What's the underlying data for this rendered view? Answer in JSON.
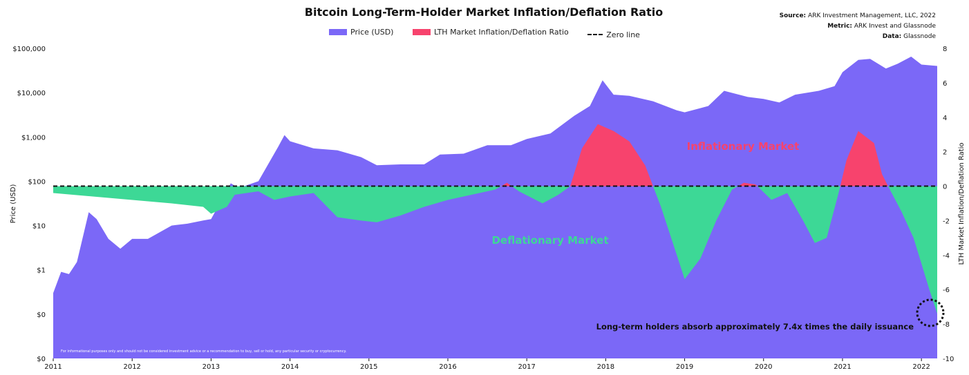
{
  "chart_data": {
    "type": "area",
    "title": "Bitcoin Long-Term-Holder Market Inflation/Deflation Ratio",
    "source": {
      "line1_label": "Source:",
      "line1_value": "ARK Investment Management, LLC, 2022",
      "line2_label": "Metric:",
      "line2_value": "ARK Invest and Glassnode",
      "line3_label": "Data:",
      "line3_value": "Glassnode"
    },
    "legend": [
      {
        "label": "Price (USD)",
        "color": "#7b68f7",
        "kind": "swatch"
      },
      {
        "label": "LTH Market Inflation/Deflation Ratio",
        "color": "#f7436d",
        "kind": "swatch"
      },
      {
        "label": "Zero line",
        "color": "#111111",
        "kind": "dash"
      }
    ],
    "ylabel_left": "Price (USD)",
    "ylabel_right": "LTH Market Inflation/Deflation Ratio",
    "y_left_scale": "log",
    "y_left_ticks": [
      "$0",
      "$0",
      "$1",
      "$10",
      "$100",
      "$1,000",
      "$10,000",
      "$100,000"
    ],
    "y_right_ticks": [
      "-10",
      "-8",
      "-6",
      "-4",
      "-2",
      "0",
      "2",
      "4",
      "6",
      "8"
    ],
    "y_right_range": [
      -10,
      8
    ],
    "x_ticks": [
      "2011",
      "2012",
      "2013",
      "2014",
      "2015",
      "2016",
      "2017",
      "2018",
      "2019",
      "2020",
      "2021",
      "2022"
    ],
    "x_range": [
      "2011-01",
      "2022-03"
    ],
    "grid": false,
    "colors": {
      "price": "#7b68f7",
      "inflation": "#f7436d",
      "deflation": "#3dd896",
      "zero_line": "#111111"
    },
    "series": [
      {
        "name": "Price (USD)",
        "x": [
          2011.0,
          2011.1,
          2011.2,
          2011.3,
          2011.45,
          2011.55,
          2011.7,
          2011.85,
          2012.0,
          2012.2,
          2012.5,
          2012.7,
          2012.9,
          2013.0,
          2013.25,
          2013.35,
          2013.6,
          2013.85,
          2013.93,
          2014.0,
          2014.3,
          2014.6,
          2014.9,
          2015.1,
          2015.4,
          2015.7,
          2015.9,
          2016.2,
          2016.5,
          2016.8,
          2017.0,
          2017.3,
          2017.6,
          2017.8,
          2017.96,
          2018.1,
          2018.3,
          2018.6,
          2018.9,
          2019.0,
          2019.3,
          2019.5,
          2019.8,
          2020.0,
          2020.2,
          2020.4,
          2020.7,
          2020.9,
          2021.0,
          2021.2,
          2021.35,
          2021.55,
          2021.7,
          2021.87,
          2022.0,
          2022.2
        ],
        "values": [
          0.3,
          0.9,
          0.8,
          1.5,
          20,
          14,
          5,
          3,
          5,
          5,
          10,
          11,
          13,
          14,
          90,
          70,
          100,
          600,
          1100,
          800,
          550,
          500,
          350,
          230,
          240,
          240,
          400,
          420,
          650,
          650,
          900,
          1200,
          3000,
          5000,
          19000,
          9000,
          8500,
          6400,
          4000,
          3600,
          5000,
          11000,
          8000,
          7200,
          6000,
          9000,
          11000,
          14000,
          29000,
          55000,
          58000,
          35000,
          45000,
          65000,
          43000,
          40000
        ]
      },
      {
        "name": "LTH Market Inflation/Deflation Ratio",
        "x": [
          2011.0,
          2011.5,
          2012.0,
          2012.5,
          2012.9,
          2013.0,
          2013.2,
          2013.3,
          2013.6,
          2013.8,
          2014.0,
          2014.3,
          2014.6,
          2014.9,
          2015.1,
          2015.4,
          2015.7,
          2016.0,
          2016.3,
          2016.6,
          2016.75,
          2016.9,
          2017.2,
          2017.4,
          2017.55,
          2017.7,
          2017.9,
          2018.1,
          2018.3,
          2018.5,
          2018.7,
          2018.9,
          2019.0,
          2019.2,
          2019.4,
          2019.6,
          2019.75,
          2019.9,
          2020.1,
          2020.3,
          2020.5,
          2020.65,
          2020.8,
          2020.95,
          2021.05,
          2021.2,
          2021.4,
          2021.5,
          2021.6,
          2021.75,
          2021.9,
          2022.0,
          2022.1,
          2022.2
        ],
        "values": [
          -0.4,
          -0.6,
          -0.8,
          -1.0,
          -1.2,
          -1.6,
          -1.2,
          -0.5,
          -0.3,
          -0.8,
          -0.6,
          -0.4,
          -1.8,
          -2.0,
          -2.1,
          -1.7,
          -1.2,
          -0.8,
          -0.5,
          -0.2,
          0.2,
          -0.3,
          -1.0,
          -0.5,
          0,
          2.2,
          3.6,
          3.2,
          2.6,
          1.2,
          -1.2,
          -4.0,
          -5.4,
          -4.2,
          -2.0,
          -0.2,
          0.2,
          0.1,
          -0.8,
          -0.4,
          -2.0,
          -3.3,
          -3.0,
          -0.4,
          1.5,
          3.2,
          2.5,
          0.7,
          -0.2,
          -1.5,
          -3.0,
          -4.5,
          -6.0,
          -7.4
        ]
      }
    ],
    "annotations": {
      "inflation": "Inflationary Market",
      "deflation": "Deflationary Market",
      "callout": "Long-term holders absorb approximately 7.4x times the daily issuance"
    },
    "disclaimer": "For informational purposes only and should not be considered investment advice or a recommendation to buy, sell or hold, any particular security or cryptocurrency."
  }
}
